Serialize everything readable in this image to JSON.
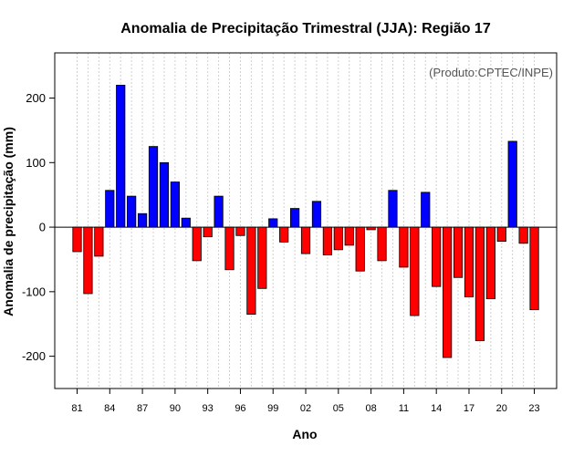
{
  "chart_data": {
    "type": "bar",
    "title": "Anomalia de Precipitação Trimestral (JJA): Região 17",
    "xlabel": "Ano",
    "ylabel": "Anomalia de precipitação (mm)",
    "annotation": "(Produto:CPTEC/INPE)",
    "ylim": [
      -250,
      270
    ],
    "y_ticks": [
      -200,
      -100,
      0,
      100,
      200
    ],
    "x_tick_labels": [
      "81",
      "84",
      "87",
      "90",
      "93",
      "96",
      "99",
      "02",
      "05",
      "08",
      "11",
      "14",
      "17",
      "20",
      "23"
    ],
    "x_tick_years": [
      1981,
      1984,
      1987,
      1990,
      1993,
      1996,
      1999,
      2002,
      2005,
      2008,
      2011,
      2014,
      2017,
      2020,
      2023
    ],
    "grid": true,
    "colors": {
      "positive": "#0000ff",
      "negative": "#ff0000",
      "grid": "#d0d0d0"
    },
    "years": [
      1981,
      1982,
      1983,
      1984,
      1985,
      1986,
      1987,
      1988,
      1989,
      1990,
      1991,
      1992,
      1993,
      1994,
      1995,
      1996,
      1997,
      1998,
      1999,
      2000,
      2001,
      2002,
      2003,
      2004,
      2005,
      2006,
      2007,
      2008,
      2009,
      2010,
      2011,
      2012,
      2013,
      2014,
      2015,
      2016,
      2017,
      2018,
      2019,
      2020,
      2021,
      2022,
      2023
    ],
    "values": [
      -38,
      -103,
      -45,
      57,
      220,
      48,
      21,
      125,
      100,
      70,
      14,
      -52,
      -15,
      48,
      -66,
      -13,
      -135,
      -95,
      13,
      -23,
      29,
      -41,
      40,
      -43,
      -35,
      -28,
      -68,
      -4,
      -52,
      57,
      -62,
      -137,
      54,
      -92,
      -202,
      -78,
      -108,
      -176,
      -111,
      -22,
      133,
      -25,
      -128
    ]
  }
}
